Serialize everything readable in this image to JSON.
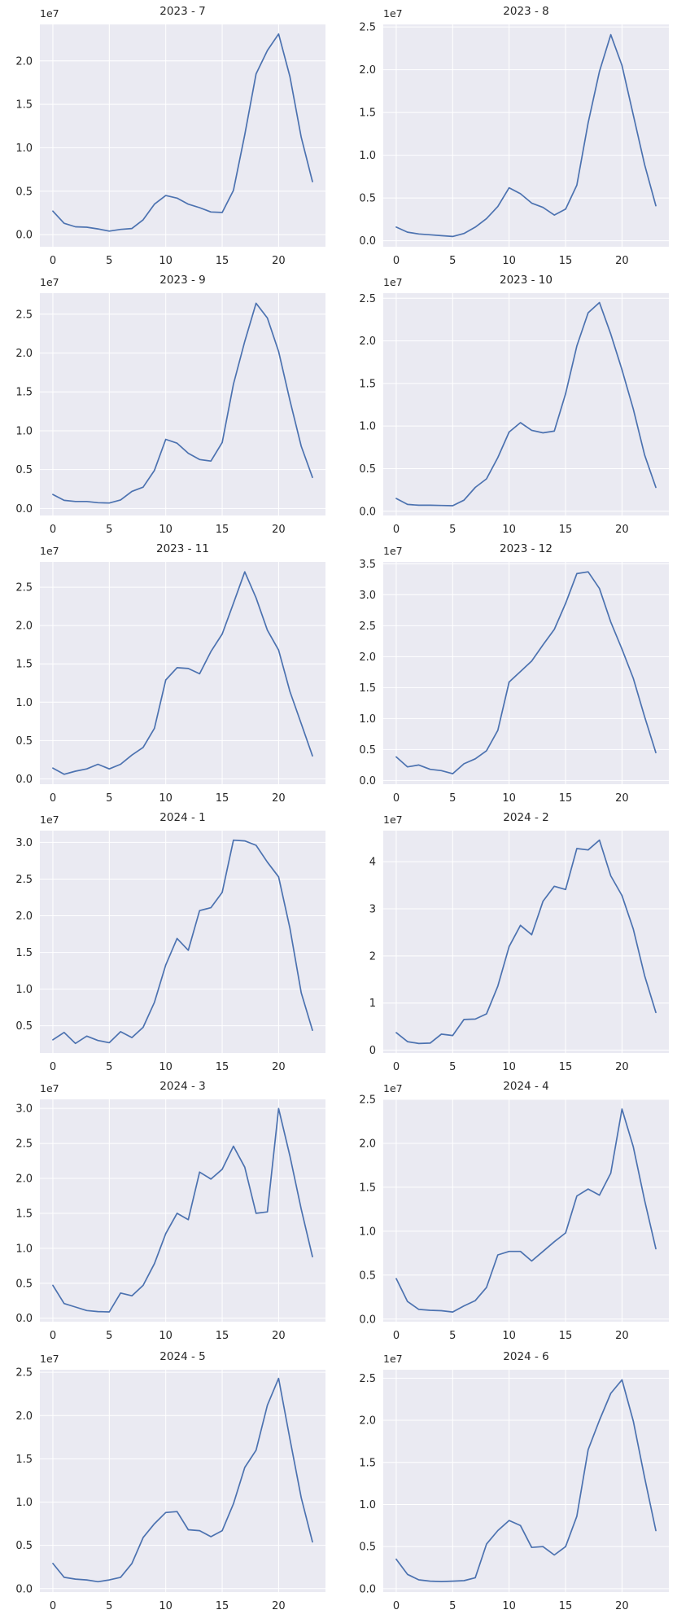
{
  "figure": {
    "layout": {
      "rows": 6,
      "cols": 2,
      "style": "seaborn-darkgrid"
    },
    "colors": {
      "line": "#4c72b0",
      "plot_bg": "#eaeaf2",
      "grid": "#ffffff",
      "text": "#262626"
    }
  },
  "chart_data": [
    {
      "type": "line",
      "title": "2023 - 7",
      "xlabel": "",
      "ylabel": "",
      "offset_label": "1e7",
      "x": [
        0,
        1,
        2,
        3,
        4,
        5,
        6,
        7,
        8,
        9,
        10,
        11,
        12,
        13,
        14,
        15,
        16,
        17,
        18,
        19,
        20,
        21,
        22,
        23
      ],
      "values": [
        2700000,
        1300000,
        900000,
        850000,
        650000,
        400000,
        600000,
        700000,
        1700000,
        3500000,
        4500000,
        4200000,
        3500000,
        3100000,
        2600000,
        2550000,
        5100000,
        11500000,
        18500000,
        21200000,
        23100000,
        18200000,
        11200000,
        6100000
      ],
      "xticks": [
        0,
        5,
        10,
        15,
        20
      ],
      "yticks": [
        0,
        0.5,
        1.0,
        1.5,
        2.0
      ],
      "ytick_labels": [
        "0.0",
        "0.5",
        "1.0",
        "1.5",
        "2.0"
      ],
      "xlim": [
        -1.15,
        24.15
      ],
      "ylim": [
        -0.14,
        2.42
      ],
      "grid": true,
      "legend": null
    },
    {
      "type": "line",
      "title": "2023 - 8",
      "xlabel": "",
      "ylabel": "",
      "offset_label": "1e7",
      "x": [
        0,
        1,
        2,
        3,
        4,
        5,
        6,
        7,
        8,
        9,
        10,
        11,
        12,
        13,
        14,
        15,
        16,
        17,
        18,
        19,
        20,
        21,
        22,
        23
      ],
      "values": [
        1600000,
        1000000,
        800000,
        700000,
        600000,
        500000,
        850000,
        1600000,
        2600000,
        4000000,
        6200000,
        5500000,
        4400000,
        3900000,
        3000000,
        3700000,
        6500000,
        13800000,
        19800000,
        24100000,
        20500000,
        14700000,
        8900000,
        4100000
      ],
      "xticks": [
        0,
        5,
        10,
        15,
        20
      ],
      "yticks": [
        0,
        0.5,
        1.0,
        1.5,
        2.0,
        2.5
      ],
      "ytick_labels": [
        "0.0",
        "0.5",
        "1.0",
        "1.5",
        "2.0",
        "2.5"
      ],
      "xlim": [
        -1.15,
        24.15
      ],
      "ylim": [
        -0.07,
        2.53
      ],
      "grid": true,
      "legend": null
    },
    {
      "type": "line",
      "title": "2023 - 9",
      "xlabel": "",
      "ylabel": "",
      "offset_label": "1e7",
      "x": [
        0,
        1,
        2,
        3,
        4,
        5,
        6,
        7,
        8,
        9,
        10,
        11,
        12,
        13,
        14,
        15,
        16,
        17,
        18,
        19,
        20,
        21,
        22,
        23
      ],
      "values": [
        1800000,
        1050000,
        900000,
        900000,
        750000,
        700000,
        1100000,
        2200000,
        2750000,
        4900000,
        8900000,
        8400000,
        7100000,
        6300000,
        6100000,
        8500000,
        16000000,
        21500000,
        26400000,
        24500000,
        20200000,
        13900000,
        8000000,
        4000000
      ],
      "xticks": [
        0,
        5,
        10,
        15,
        20
      ],
      "yticks": [
        0,
        0.5,
        1.0,
        1.5,
        2.0,
        2.5
      ],
      "ytick_labels": [
        "0.0",
        "0.5",
        "1.0",
        "1.5",
        "2.0",
        "2.5"
      ],
      "xlim": [
        -1.15,
        24.15
      ],
      "ylim": [
        -0.09,
        2.77
      ],
      "grid": true,
      "legend": null
    },
    {
      "type": "line",
      "title": "2023 - 10",
      "xlabel": "",
      "ylabel": "",
      "offset_label": "1e7",
      "x": [
        0,
        1,
        2,
        3,
        4,
        5,
        6,
        7,
        8,
        9,
        10,
        11,
        12,
        13,
        14,
        15,
        16,
        17,
        18,
        19,
        20,
        21,
        22,
        23
      ],
      "values": [
        1500000,
        800000,
        700000,
        700000,
        680000,
        650000,
        1300000,
        2800000,
        3800000,
        6300000,
        9300000,
        10400000,
        9500000,
        9200000,
        9400000,
        13800000,
        19400000,
        23300000,
        24500000,
        20800000,
        16600000,
        12000000,
        6600000,
        2800000
      ],
      "xticks": [
        0,
        5,
        10,
        15,
        20
      ],
      "yticks": [
        0,
        0.5,
        1.0,
        1.5,
        2.0,
        2.5
      ],
      "ytick_labels": [
        "0.0",
        "0.5",
        "1.0",
        "1.5",
        "2.0",
        "2.5"
      ],
      "xlim": [
        -1.15,
        24.15
      ],
      "ylim": [
        -0.05,
        2.56
      ],
      "grid": true,
      "legend": null
    },
    {
      "type": "line",
      "title": "2023 - 11",
      "xlabel": "",
      "ylabel": "",
      "offset_label": "1e7",
      "x": [
        0,
        1,
        2,
        3,
        4,
        5,
        6,
        7,
        8,
        9,
        10,
        11,
        12,
        13,
        14,
        15,
        16,
        17,
        18,
        19,
        20,
        21,
        22,
        23
      ],
      "values": [
        1400000,
        600000,
        1000000,
        1300000,
        1900000,
        1300000,
        1900000,
        3100000,
        4100000,
        6600000,
        12900000,
        14500000,
        14400000,
        13700000,
        16600000,
        18900000,
        22900000,
        27000000,
        23600000,
        19400000,
        16800000,
        11400000,
        7200000,
        3000000
      ],
      "xticks": [
        0,
        5,
        10,
        15,
        20
      ],
      "yticks": [
        0,
        0.5,
        1.0,
        1.5,
        2.0,
        2.5
      ],
      "ytick_labels": [
        "0.0",
        "0.5",
        "1.0",
        "1.5",
        "2.0",
        "2.5"
      ],
      "xlim": [
        -1.15,
        24.15
      ],
      "ylim": [
        -0.07,
        2.83
      ],
      "grid": true,
      "legend": null
    },
    {
      "type": "line",
      "title": "2023 - 12",
      "xlabel": "",
      "ylabel": "",
      "offset_label": "1e7",
      "x": [
        0,
        1,
        2,
        3,
        4,
        5,
        6,
        7,
        8,
        9,
        10,
        11,
        12,
        13,
        14,
        15,
        16,
        17,
        18,
        19,
        20,
        21,
        22,
        23
      ],
      "values": [
        3800000,
        2200000,
        2500000,
        1800000,
        1600000,
        1100000,
        2700000,
        3500000,
        4800000,
        8100000,
        15900000,
        17600000,
        19300000,
        21900000,
        24400000,
        28600000,
        33400000,
        33700000,
        31000000,
        25600000,
        21200000,
        16500000,
        10300000,
        4500000
      ],
      "xticks": [
        0,
        5,
        10,
        15,
        20
      ],
      "yticks": [
        0,
        0.5,
        1.0,
        1.5,
        2.0,
        2.5,
        3.0,
        3.5
      ],
      "ytick_labels": [
        "0.0",
        "0.5",
        "1.0",
        "1.5",
        "2.0",
        "2.5",
        "3.0",
        "3.5"
      ],
      "xlim": [
        -1.15,
        24.15
      ],
      "ylim": [
        -0.06,
        3.53
      ],
      "grid": true,
      "legend": null
    },
    {
      "type": "line",
      "title": "2024 - 1",
      "xlabel": "",
      "ylabel": "",
      "offset_label": "1e7",
      "x": [
        0,
        1,
        2,
        3,
        4,
        5,
        6,
        7,
        8,
        9,
        10,
        11,
        12,
        13,
        14,
        15,
        16,
        17,
        18,
        19,
        20,
        21,
        22,
        23
      ],
      "values": [
        3100000,
        4100000,
        2600000,
        3600000,
        3000000,
        2700000,
        4200000,
        3400000,
        4800000,
        8200000,
        13300000,
        16900000,
        15300000,
        20700000,
        21100000,
        23200000,
        30300000,
        30200000,
        29600000,
        27300000,
        25300000,
        18300000,
        9500000,
        4400000
      ],
      "xticks": [
        0,
        5,
        10,
        15,
        20
      ],
      "yticks": [
        0.5,
        1.0,
        1.5,
        2.0,
        2.5,
        3.0
      ],
      "ytick_labels": [
        "0.5",
        "1.0",
        "1.5",
        "2.0",
        "2.5",
        "3.0"
      ],
      "xlim": [
        -1.15,
        24.15
      ],
      "ylim": [
        0.13,
        3.16
      ],
      "grid": true,
      "legend": null
    },
    {
      "type": "line",
      "title": "2024 - 2",
      "xlabel": "",
      "ylabel": "",
      "offset_label": "1e7",
      "x": [
        0,
        1,
        2,
        3,
        4,
        5,
        6,
        7,
        8,
        9,
        10,
        11,
        12,
        13,
        14,
        15,
        16,
        17,
        18,
        19,
        20,
        21,
        22,
        23
      ],
      "values": [
        3700000,
        1800000,
        1400000,
        1500000,
        3400000,
        3100000,
        6500000,
        6600000,
        7700000,
        13600000,
        22000000,
        26500000,
        24500000,
        31600000,
        34800000,
        34100000,
        42800000,
        42500000,
        44600000,
        37000000,
        32800000,
        25700000,
        15800000,
        8000000
      ],
      "xticks": [
        0,
        5,
        10,
        15,
        20
      ],
      "yticks": [
        0,
        1,
        2,
        3,
        4
      ],
      "ytick_labels": [
        "0",
        "1",
        "2",
        "3",
        "4"
      ],
      "xlim": [
        -1.15,
        24.15
      ],
      "ylim": [
        -0.06,
        4.66
      ],
      "grid": true,
      "legend": null
    },
    {
      "type": "line",
      "title": "2024 - 3",
      "xlabel": "",
      "ylabel": "",
      "offset_label": "1e7",
      "x": [
        0,
        1,
        2,
        3,
        4,
        5,
        6,
        7,
        8,
        9,
        10,
        11,
        12,
        13,
        14,
        15,
        16,
        17,
        18,
        19,
        20,
        21,
        22,
        23
      ],
      "values": [
        4700000,
        2100000,
        1600000,
        1100000,
        950000,
        900000,
        3600000,
        3200000,
        4700000,
        7800000,
        12100000,
        15000000,
        14100000,
        20900000,
        19900000,
        21300000,
        24600000,
        21600000,
        15000000,
        15200000,
        30000000,
        23200000,
        15600000,
        8800000
      ],
      "xticks": [
        0,
        5,
        10,
        15,
        20
      ],
      "yticks": [
        0,
        0.5,
        1.0,
        1.5,
        2.0,
        2.5,
        3.0
      ],
      "ytick_labels": [
        "0.0",
        "0.5",
        "1.0",
        "1.5",
        "2.0",
        "2.5",
        "3.0"
      ],
      "xlim": [
        -1.15,
        24.15
      ],
      "ylim": [
        -0.05,
        3.13
      ],
      "grid": true,
      "legend": null
    },
    {
      "type": "line",
      "title": "2024 - 4",
      "xlabel": "",
      "ylabel": "",
      "offset_label": "1e7",
      "x": [
        0,
        1,
        2,
        3,
        4,
        5,
        6,
        7,
        8,
        9,
        10,
        11,
        12,
        13,
        14,
        15,
        16,
        17,
        18,
        19,
        20,
        21,
        22,
        23
      ],
      "values": [
        4600000,
        2000000,
        1100000,
        1000000,
        950000,
        800000,
        1500000,
        2100000,
        3600000,
        7300000,
        7700000,
        7700000,
        6600000,
        7700000,
        8800000,
        9800000,
        14000000,
        14800000,
        14100000,
        16600000,
        23900000,
        19600000,
        13500000,
        8000000
      ],
      "xticks": [
        0,
        5,
        10,
        15,
        20
      ],
      "yticks": [
        0,
        0.5,
        1.0,
        1.5,
        2.0,
        2.5
      ],
      "ytick_labels": [
        "0.0",
        "0.5",
        "1.0",
        "1.5",
        "2.0",
        "2.5"
      ],
      "xlim": [
        -1.15,
        24.15
      ],
      "ylim": [
        -0.03,
        2.5
      ],
      "grid": true,
      "legend": null
    },
    {
      "type": "line",
      "title": "2024 - 5",
      "xlabel": "",
      "ylabel": "",
      "offset_label": "1e7",
      "x": [
        0,
        1,
        2,
        3,
        4,
        5,
        6,
        7,
        8,
        9,
        10,
        11,
        12,
        13,
        14,
        15,
        16,
        17,
        18,
        19,
        20,
        21,
        22,
        23
      ],
      "values": [
        2900000,
        1300000,
        1100000,
        1000000,
        800000,
        1000000,
        1300000,
        2900000,
        5900000,
        7500000,
        8800000,
        8900000,
        6800000,
        6700000,
        6000000,
        6700000,
        9800000,
        14000000,
        16000000,
        21200000,
        24300000,
        17300000,
        10500000,
        5400000
      ],
      "xticks": [
        0,
        5,
        10,
        15,
        20
      ],
      "yticks": [
        0,
        0.5,
        1.0,
        1.5,
        2.0,
        2.5
      ],
      "ytick_labels": [
        "0.0",
        "0.5",
        "1.0",
        "1.5",
        "2.0",
        "2.5"
      ],
      "xlim": [
        -1.15,
        24.15
      ],
      "ylim": [
        -0.04,
        2.53
      ],
      "grid": true,
      "legend": null
    },
    {
      "type": "line",
      "title": "2024 - 6",
      "xlabel": "",
      "ylabel": "",
      "offset_label": "1e7",
      "x": [
        0,
        1,
        2,
        3,
        4,
        5,
        6,
        7,
        8,
        9,
        10,
        11,
        12,
        13,
        14,
        15,
        16,
        17,
        18,
        19,
        20,
        21,
        22,
        23
      ],
      "values": [
        3500000,
        1700000,
        1050000,
        900000,
        850000,
        900000,
        950000,
        1300000,
        5300000,
        6900000,
        8100000,
        7500000,
        4900000,
        5000000,
        4000000,
        5000000,
        8600000,
        16500000,
        20000000,
        23200000,
        24800000,
        19900000,
        13200000,
        6900000
      ],
      "xticks": [
        0,
        5,
        10,
        15,
        20
      ],
      "yticks": [
        0,
        0.5,
        1.0,
        1.5,
        2.0,
        2.5
      ],
      "ytick_labels": [
        "0.0",
        "0.5",
        "1.0",
        "1.5",
        "2.0",
        "2.5"
      ],
      "xlim": [
        -1.15,
        24.15
      ],
      "ylim": [
        -0.04,
        2.6
      ],
      "grid": true,
      "legend": null
    }
  ]
}
